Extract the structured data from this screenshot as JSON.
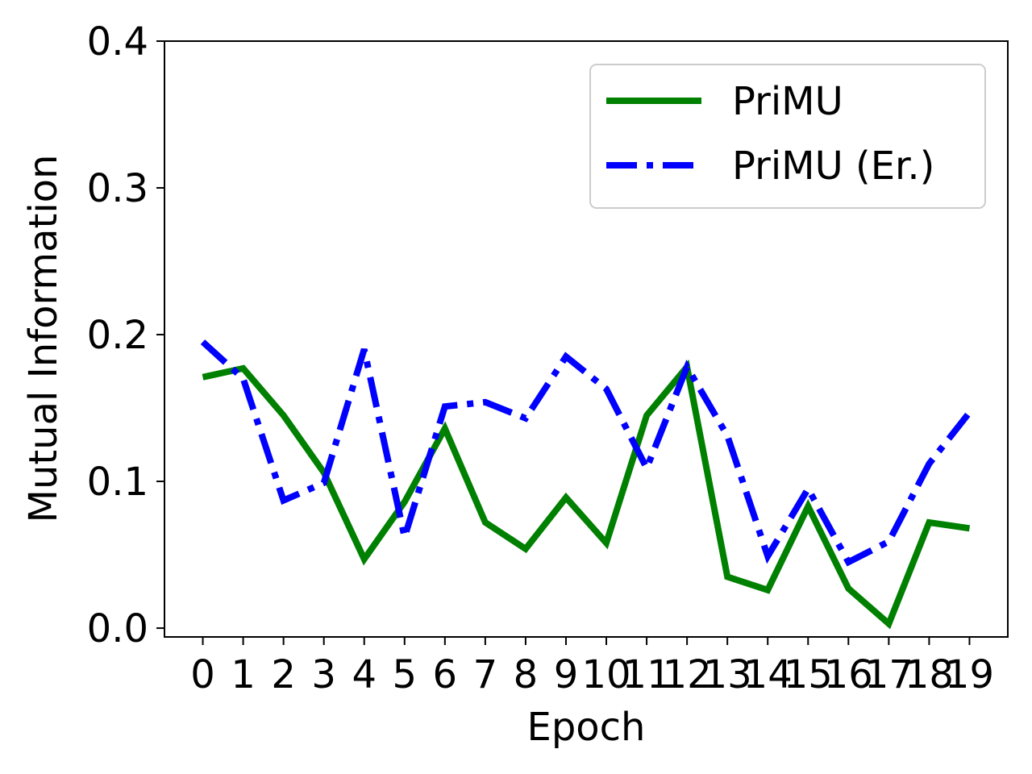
{
  "chart_data": {
    "type": "line",
    "xlabel": "Epoch",
    "ylabel": "Mutual Information",
    "x": [
      0,
      1,
      2,
      3,
      4,
      5,
      6,
      7,
      8,
      9,
      10,
      11,
      12,
      13,
      14,
      15,
      16,
      17,
      18,
      19
    ],
    "x_tick_labels": [
      "0",
      "1",
      "2",
      "3",
      "4",
      "5",
      "6",
      "7",
      "8",
      "9",
      "10",
      "11",
      "12",
      "13",
      "14",
      "15",
      "16",
      "17",
      "18",
      "19"
    ],
    "ylim": [
      -0.006,
      0.4
    ],
    "y_ticks": [
      0.0,
      0.1,
      0.2,
      0.3,
      0.4
    ],
    "y_tick_labels": [
      "0.0",
      "0.1",
      "0.2",
      "0.3",
      "0.4"
    ],
    "grid": false,
    "legend_position": "top-right",
    "series": [
      {
        "name": "PriMU",
        "color": "#008000",
        "style": "solid",
        "values": [
          0.171,
          0.177,
          0.145,
          0.106,
          0.047,
          0.086,
          0.136,
          0.072,
          0.054,
          0.089,
          0.058,
          0.145,
          0.178,
          0.035,
          0.026,
          0.083,
          0.027,
          0.003,
          0.072,
          0.068
        ]
      },
      {
        "name": "PriMU (Er.)",
        "color": "#0000ff",
        "style": "dashdot",
        "values": [
          0.195,
          0.17,
          0.087,
          0.099,
          0.19,
          0.062,
          0.151,
          0.154,
          0.143,
          0.185,
          0.163,
          0.109,
          0.178,
          0.131,
          0.049,
          0.095,
          0.045,
          0.059,
          0.112,
          0.147
        ]
      }
    ]
  }
}
